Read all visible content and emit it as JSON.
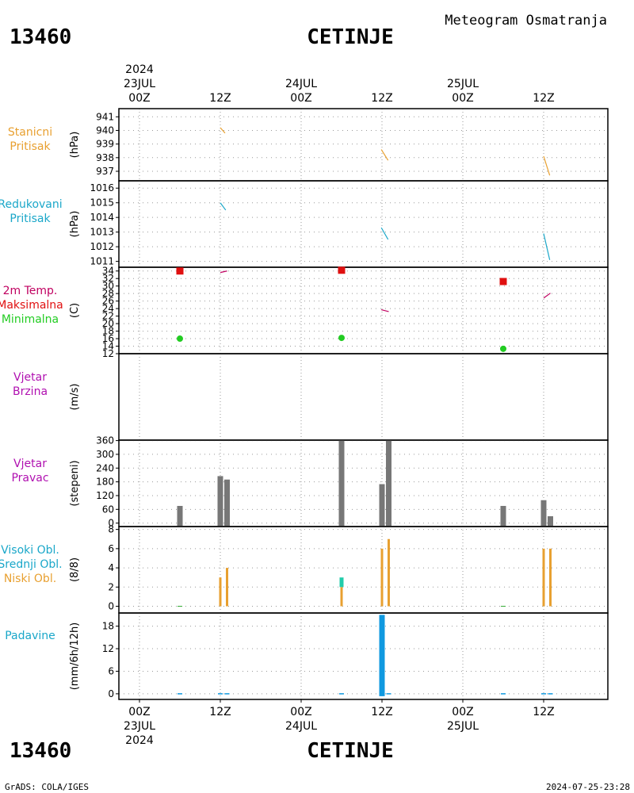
{
  "header": {
    "station_id": "13460",
    "station_name": "CETINJE",
    "chart_title": "Meteogram Osmatranja"
  },
  "footer": {
    "software": "GrADS: COLA/IGES",
    "timestamp": "2024-07-25-23:28"
  },
  "colors": {
    "orange": "#e8a030",
    "cyan": "#1aa7c9",
    "red": "#e01010",
    "green": "#22cc22",
    "purple": "#b010b0",
    "gray": "#777777",
    "teal": "#22ccaa",
    "blue": "#1099e0",
    "crimson": "#c00060"
  },
  "time_axis": {
    "labels": [
      {
        "h": 0,
        "line1": "00Z",
        "top_date": "23JUL",
        "top_year": "2024",
        "bottom_date": "23JUL",
        "bottom_year": "2024"
      },
      {
        "h": 12,
        "line1": "12Z"
      },
      {
        "h": 24,
        "line1": "00Z",
        "top_date": "24JUL",
        "bottom_date": "24JUL"
      },
      {
        "h": 36,
        "line1": "12Z"
      },
      {
        "h": 48,
        "line1": "00Z",
        "top_date": "25JUL",
        "bottom_date": "25JUL"
      },
      {
        "h": 60,
        "line1": "12Z"
      }
    ]
  },
  "chart_data": [
    {
      "id": "stanicni",
      "type": "line",
      "label_lines": [
        "Stanicni",
        "Pritisak"
      ],
      "label_color": "#e8a030",
      "unit": "(hPa)",
      "ylim": [
        936.3,
        941.6
      ],
      "yticks": [
        937,
        938,
        939,
        940,
        941
      ],
      "grid": true,
      "series": [
        {
          "color": "#e8a030",
          "points": [
            [
              12,
              940.2
            ],
            [
              12.7,
              939.8
            ]
          ]
        },
        {
          "color": "#e8a030",
          "points": [
            [
              35.9,
              938.6
            ],
            [
              36.9,
              937.8
            ]
          ]
        },
        {
          "color": "#e8a030",
          "points": [
            [
              60,
              938.1
            ],
            [
              60.9,
              936.7
            ]
          ]
        }
      ]
    },
    {
      "id": "redukovani",
      "type": "line",
      "label_lines": [
        "Redukovani",
        "Pritisak"
      ],
      "label_color": "#1aa7c9",
      "unit": "(hPa)",
      "ylim": [
        1010.6,
        1016.5
      ],
      "yticks": [
        1011,
        1012,
        1013,
        1014,
        1015,
        1016
      ],
      "grid": true,
      "series": [
        {
          "color": "#1aa7c9",
          "points": [
            [
              12,
              1015.0
            ],
            [
              12.8,
              1014.5
            ]
          ]
        },
        {
          "color": "#1aa7c9",
          "points": [
            [
              35.9,
              1013.3
            ],
            [
              36.9,
              1012.5
            ]
          ]
        },
        {
          "color": "#1aa7c9",
          "points": [
            [
              60,
              1012.9
            ],
            [
              60.9,
              1011.1
            ]
          ]
        }
      ]
    },
    {
      "id": "temperatura",
      "type": "scatter",
      "label_lines": [
        "2m Temp.",
        "Maksimalna",
        "Minimalna"
      ],
      "label_colors": [
        "#c00060",
        "#e01010",
        "#22cc22"
      ],
      "unit": "(C)",
      "ylim": [
        12,
        35
      ],
      "yticks": [
        12,
        14,
        16,
        18,
        20,
        22,
        24,
        26,
        28,
        30,
        32,
        34
      ],
      "grid": true,
      "series": [
        {
          "color": "#c00060",
          "kind": "line",
          "points": [
            [
              12,
              33.6
            ],
            [
              13,
              34.0
            ]
          ]
        },
        {
          "color": "#c00060",
          "kind": "line",
          "points": [
            [
              35.9,
              23.7
            ],
            [
              37,
              23.2
            ]
          ]
        },
        {
          "color": "#c00060",
          "kind": "line",
          "points": [
            [
              60,
              26.8
            ],
            [
              61,
              28.1
            ]
          ]
        },
        {
          "color": "#e01010",
          "kind": "square",
          "points": [
            [
              6,
              34.0
            ],
            [
              30,
              34.2
            ],
            [
              54,
              31.2
            ]
          ]
        },
        {
          "color": "#22cc22",
          "kind": "circle",
          "points": [
            [
              6,
              16.0
            ],
            [
              30,
              16.2
            ],
            [
              54,
              13.3
            ]
          ]
        }
      ]
    },
    {
      "id": "vjetar_brzina",
      "type": "line",
      "label_lines": [
        "Vjetar",
        "Brzina"
      ],
      "label_color": "#b010b0",
      "unit": "(m/s)",
      "yticks": [],
      "grid": false,
      "series": []
    },
    {
      "id": "vjetar_pravac",
      "type": "bar",
      "label_lines": [
        "Vjetar",
        "Pravac"
      ],
      "label_color": "#b010b0",
      "unit": "(stepeni)",
      "ylim": [
        -15,
        362
      ],
      "yticks": [
        0,
        60,
        120,
        180,
        240,
        300,
        360
      ],
      "grid": true,
      "bars": [
        {
          "x": 6,
          "v": 75
        },
        {
          "x": 12,
          "v": 205
        },
        {
          "x": 13,
          "v": 190
        },
        {
          "x": 30,
          "v": 360
        },
        {
          "x": 36,
          "v": 170
        },
        {
          "x": 37,
          "v": 360
        },
        {
          "x": 54,
          "v": 75
        },
        {
          "x": 60,
          "v": 100
        },
        {
          "x": 61,
          "v": 30
        }
      ]
    },
    {
      "id": "oblacnost",
      "type": "bar",
      "label_lines": [
        "Visoki Obl.",
        "Srednji Obl.",
        "Niski Obl."
      ],
      "label_colors": [
        "#1aa7c9",
        "#1aa7c9",
        "#e8a030"
      ],
      "unit": "(8/8)",
      "ylim": [
        -0.7,
        8.3
      ],
      "yticks": [
        0,
        2,
        4,
        6,
        8
      ],
      "grid": true,
      "bars": [
        {
          "x": 6,
          "low": 0,
          "mid": 0
        },
        {
          "x": 12,
          "low": 3,
          "mid": 0
        },
        {
          "x": 13,
          "low": 4,
          "mid": 0
        },
        {
          "x": 30,
          "low": 2,
          "mid": 1
        },
        {
          "x": 36,
          "low": 6,
          "mid": 0
        },
        {
          "x": 37,
          "low": 7,
          "mid": 0
        },
        {
          "x": 54,
          "low": 0,
          "mid": 0
        },
        {
          "x": 60,
          "low": 6,
          "mid": 0
        },
        {
          "x": 61,
          "low": 6,
          "mid": 0
        }
      ]
    },
    {
      "id": "padavine",
      "type": "bar",
      "label_lines": [
        "Padavine"
      ],
      "label_color": "#1aa7c9",
      "unit": "(mm/6h/12h)",
      "ylim": [
        -1.5,
        21.5
      ],
      "yticks": [
        0,
        6,
        12,
        18
      ],
      "grid": true,
      "bars": [
        {
          "x": 6,
          "v": 0
        },
        {
          "x": 12,
          "v": 0
        },
        {
          "x": 13,
          "v": 0
        },
        {
          "x": 30,
          "v": 0
        },
        {
          "x": 36,
          "v": 21
        },
        {
          "x": 37,
          "v": 0
        },
        {
          "x": 54,
          "v": 0
        },
        {
          "x": 60,
          "v": 0
        },
        {
          "x": 61,
          "v": 0
        }
      ]
    }
  ]
}
